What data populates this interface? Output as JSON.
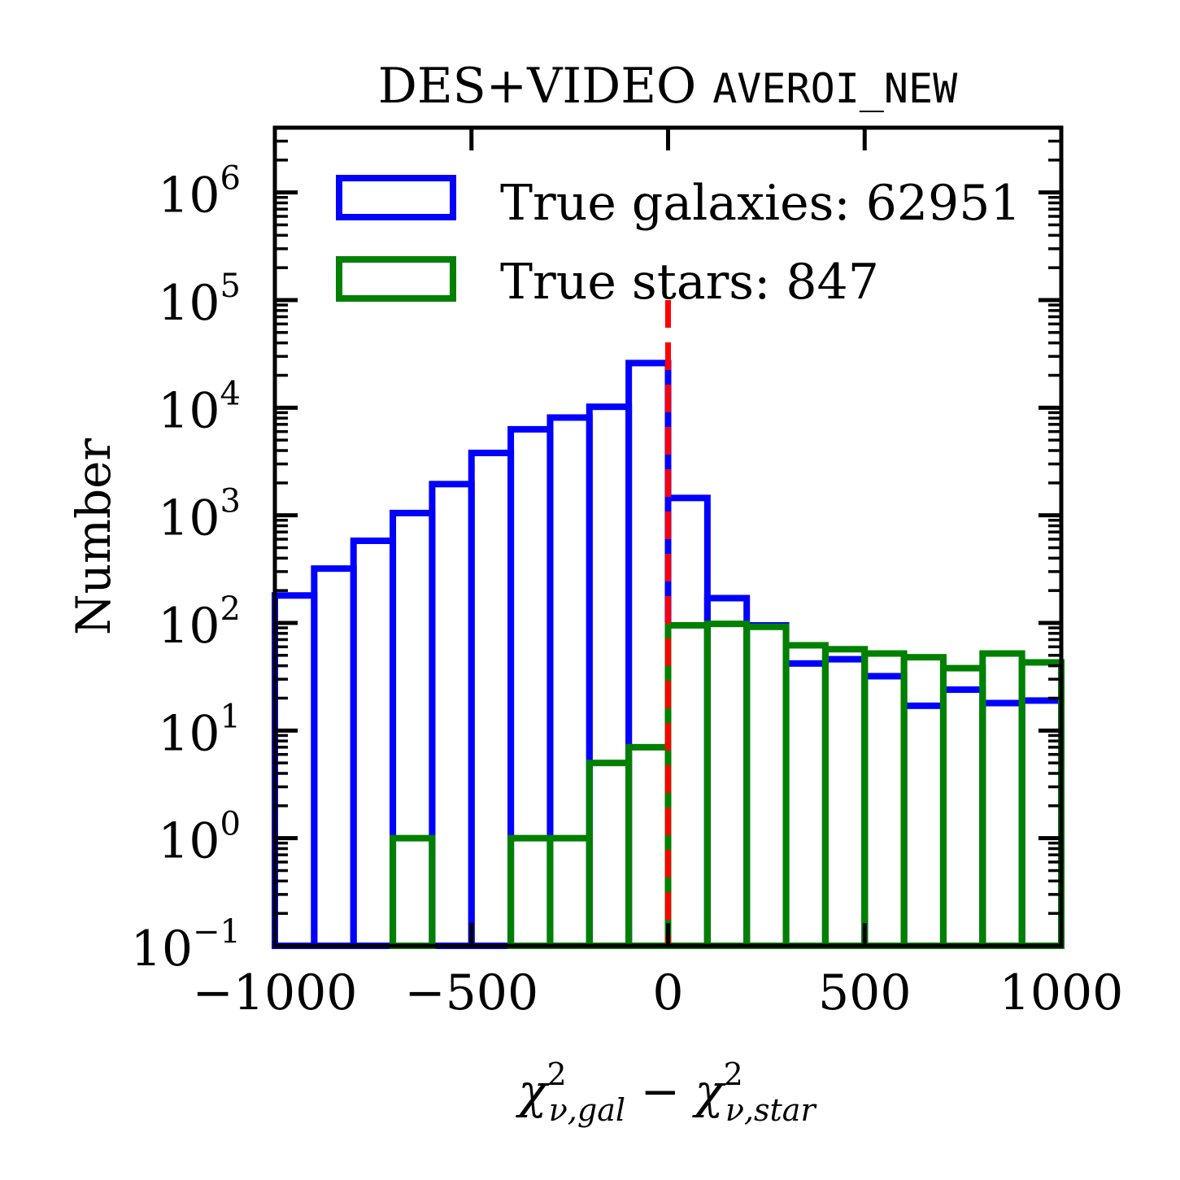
{
  "chart_data": {
    "type": "histogram",
    "title": {
      "plain": "DES+VIDEO",
      "code": "AVEROI_NEW"
    },
    "xlabel": {
      "chi": "χ",
      "sup": "2",
      "sub_gal": "ν,gal",
      "minus": " − ",
      "sub_star": "ν,star"
    },
    "ylabel": "Number",
    "y_scale": "log",
    "xlim": [
      -1000,
      1000
    ],
    "ylim": [
      0.1,
      4000000
    ],
    "x_ticks": [
      -1000,
      -500,
      0,
      500,
      1000
    ],
    "x_tick_labels": [
      "−1000",
      "−500",
      "0",
      "500",
      "1000"
    ],
    "y_ticks": [
      {
        "value": 0.1,
        "base": "10",
        "exp": "−1"
      },
      {
        "value": 1,
        "base": "10",
        "exp": "0"
      },
      {
        "value": 10,
        "base": "10",
        "exp": "1"
      },
      {
        "value": 100,
        "base": "10",
        "exp": "2"
      },
      {
        "value": 1000,
        "base": "10",
        "exp": "3"
      },
      {
        "value": 10000,
        "base": "10",
        "exp": "4"
      },
      {
        "value": 100000,
        "base": "10",
        "exp": "5"
      },
      {
        "value": 1000000,
        "base": "10",
        "exp": "6"
      }
    ],
    "bin_edges": [
      -1000,
      -900,
      -800,
      -700,
      -600,
      -500,
      -400,
      -300,
      -200,
      -100,
      0,
      100,
      200,
      300,
      400,
      500,
      600,
      700,
      800,
      900,
      1000
    ],
    "series": [
      {
        "name": "True galaxies: 62951",
        "color": "#0000ff",
        "values": [
          180,
          320,
          580,
          1050,
          1950,
          3800,
          6300,
          8100,
          10200,
          26000,
          1450,
          170,
          95,
          42,
          46,
          32,
          17,
          24,
          18,
          19
        ]
      },
      {
        "name": "True stars: 847",
        "color": "#008000",
        "values": [
          0,
          0,
          0,
          1,
          0,
          0,
          1,
          1,
          5,
          7,
          95,
          98,
          92,
          62,
          57,
          52,
          48,
          38,
          52,
          43
        ]
      }
    ],
    "vline": {
      "x": 0,
      "color": "#ff0000",
      "style": "dashed"
    },
    "legend": {
      "placement": "top"
    },
    "grid": false
  }
}
